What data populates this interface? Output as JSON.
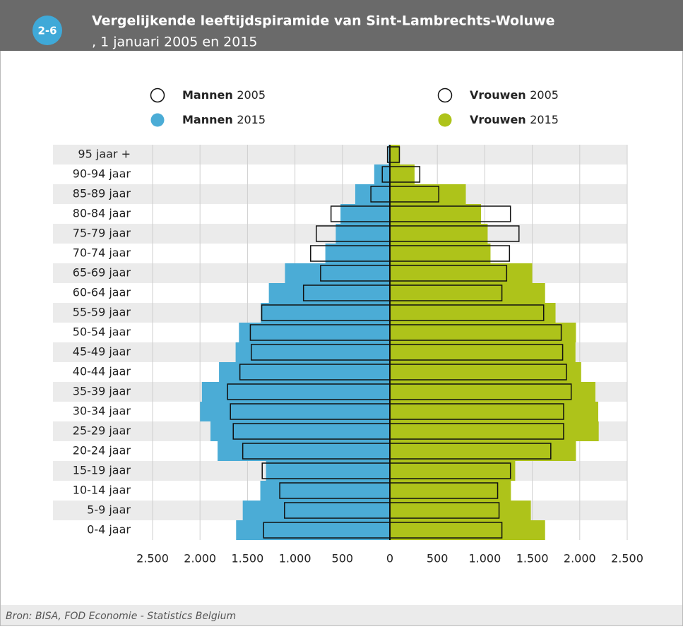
{
  "badge": "2-6",
  "chart_data": {
    "type": "pyramid",
    "title": "Vergelijkende leeftijdspiramide van Sint-Lambrechts-Woluwe",
    "subtitle": ", 1 januari 2005 en 2015",
    "source": "Bron: BISA, FOD Economie - Statistics Belgium",
    "categories": [
      "95 jaar +",
      "90-94 jaar",
      "85-89 jaar",
      "80-84 jaar",
      "75-79 jaar",
      "70-74 jaar",
      "65-69 jaar",
      "60-64 jaar",
      "55-59 jaar",
      "50-54 jaar",
      "45-49 jaar",
      "40-44 jaar",
      "35-39 jaar",
      "30-34 jaar",
      "25-29 jaar",
      "20-24 jaar",
      "15-19 jaar",
      "10-14 jaar",
      "5-9 jaar",
      "0-4 jaar"
    ],
    "series": [
      {
        "name": "Mannen 2005",
        "color": "#ffffff",
        "values": [
          25,
          80,
          200,
          620,
          775,
          835,
          730,
          910,
          1350,
          1470,
          1460,
          1580,
          1710,
          1680,
          1650,
          1550,
          1345,
          1160,
          1110,
          1330
        ]
      },
      {
        "name": "Mannen 2015",
        "color": "#4bacd6",
        "values": [
          15,
          165,
          365,
          520,
          570,
          680,
          1105,
          1275,
          1360,
          1590,
          1625,
          1800,
          1980,
          2000,
          1890,
          1815,
          1305,
          1365,
          1550,
          1620
        ]
      },
      {
        "name": "Vrouwen 2005",
        "color": "#ffffff",
        "values": [
          100,
          315,
          515,
          1270,
          1360,
          1260,
          1230,
          1180,
          1620,
          1805,
          1820,
          1860,
          1910,
          1830,
          1830,
          1695,
          1270,
          1135,
          1150,
          1180
        ]
      },
      {
        "name": "Vrouwen 2015",
        "color": "#aec31a",
        "values": [
          105,
          260,
          800,
          960,
          1030,
          1060,
          1500,
          1635,
          1745,
          1960,
          1955,
          2015,
          2165,
          2195,
          2200,
          1960,
          1320,
          1275,
          1485,
          1635
        ]
      }
    ],
    "xlim": [
      -2500,
      2500
    ],
    "xticks": [
      {
        "value": -2500,
        "label": "2.500"
      },
      {
        "value": -2000,
        "label": "2.000"
      },
      {
        "value": -1500,
        "label": "1.500"
      },
      {
        "value": -1000,
        "label": "1.000"
      },
      {
        "value": -500,
        "label": "500"
      },
      0,
      500,
      {
        "value": 1000,
        "label": "1.000"
      },
      {
        "value": 1500,
        "label": "1.500"
      },
      {
        "value": 2000,
        "label": "2.000"
      },
      {
        "value": 2500,
        "label": "2.500"
      }
    ],
    "grid": true
  }
}
